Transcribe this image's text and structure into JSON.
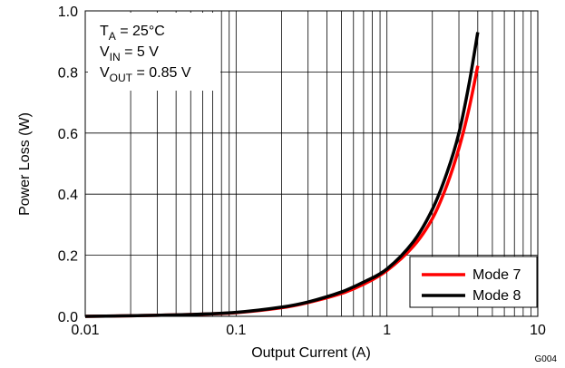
{
  "chart_data": {
    "type": "line",
    "title": "",
    "xlabel": "Output Current (A)",
    "ylabel": "Power Loss (W)",
    "xscale": "log",
    "xlim": [
      0.01,
      10
    ],
    "ylim": [
      0,
      1.0
    ],
    "x_ticks": [
      "0.01",
      "0.1",
      "1",
      "10"
    ],
    "y_ticks": [
      "0.0",
      "0.2",
      "0.4",
      "0.6",
      "0.8",
      "1.0"
    ],
    "grid": true,
    "legend_position": "bottom-right",
    "annotation": {
      "line1": {
        "main": "T",
        "sub": "A",
        "rest": " = 25°C"
      },
      "line2": {
        "main": "V",
        "sub": "IN",
        "rest": " = 5 V"
      },
      "line3": {
        "main": "V",
        "sub": "OUT",
        "rest": " = 0.85 V"
      }
    },
    "figure_code": "G004",
    "series": [
      {
        "name": "Mode 7",
        "color": "#ff0000",
        "x": [
          0.01,
          0.02,
          0.05,
          0.1,
          0.2,
          0.3,
          0.5,
          0.7,
          1.0,
          1.5,
          2.0,
          2.5,
          3.0,
          3.5,
          4.0
        ],
        "y": [
          0.0,
          0.002,
          0.006,
          0.012,
          0.028,
          0.045,
          0.075,
          0.105,
          0.15,
          0.23,
          0.32,
          0.43,
          0.55,
          0.68,
          0.82
        ]
      },
      {
        "name": "Mode 8",
        "color": "#000000",
        "x": [
          0.01,
          0.02,
          0.05,
          0.1,
          0.2,
          0.3,
          0.5,
          0.7,
          1.0,
          1.5,
          2.0,
          2.5,
          3.0,
          3.5,
          4.0
        ],
        "y": [
          0.0,
          0.002,
          0.006,
          0.013,
          0.03,
          0.047,
          0.08,
          0.112,
          0.155,
          0.245,
          0.35,
          0.47,
          0.6,
          0.76,
          0.93
        ]
      }
    ]
  }
}
